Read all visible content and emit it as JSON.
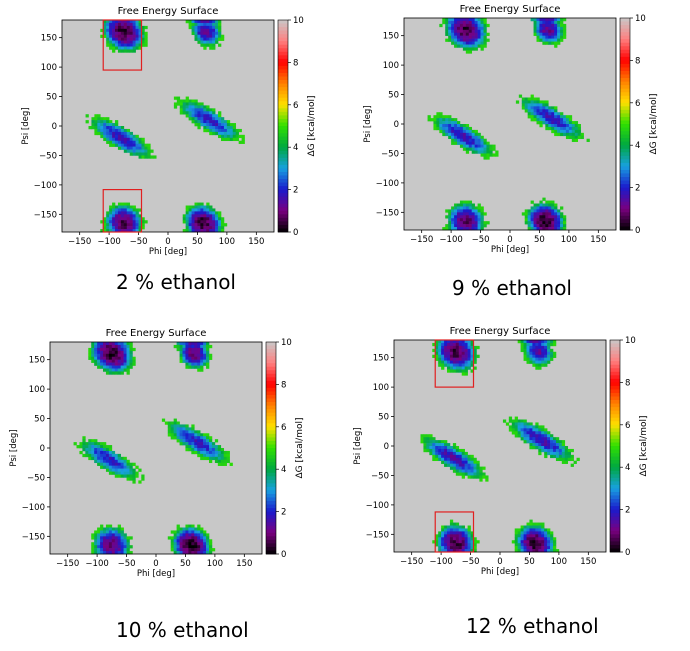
{
  "chart_data": [
    {
      "type": "heatmap",
      "title": "Free Energy Surface",
      "xlabel": "Phi [deg]",
      "ylabel": "Psi [deg]",
      "xlim": [
        -180,
        180
      ],
      "ylim": [
        -180,
        180
      ],
      "xticks": [
        "−150",
        "−100",
        "−50",
        "0",
        "50",
        "100",
        "150"
      ],
      "yticks": [
        "−150",
        "−100",
        "−50",
        "0",
        "50",
        "100",
        "150"
      ],
      "colorbar": {
        "label": "ΔG [kcal/mol]",
        "range": [
          0,
          10
        ],
        "ticks": [
          "0",
          "2",
          "4",
          "6",
          "8",
          "10"
        ]
      },
      "caption": "2 % ethanol",
      "basins": [
        {
          "phi": -75,
          "psi": 160,
          "min_dG": 0.4
        },
        {
          "phi": 65,
          "psi": 160,
          "min_dG": 1.2
        },
        {
          "phi": -80,
          "psi": -20,
          "min_dG": 1.6
        },
        {
          "phi": 70,
          "psi": 10,
          "min_dG": 1.8
        },
        {
          "phi": -75,
          "psi": -165,
          "min_dG": 0.6
        },
        {
          "phi": 60,
          "psi": -165,
          "min_dG": 0.3
        }
      ],
      "annotations": [
        {
          "label": "box-top",
          "phi_range": [
            -110,
            -45
          ],
          "psi_range": [
            95,
            180
          ]
        },
        {
          "label": "box-bottom",
          "phi_range": [
            -110,
            -45
          ],
          "psi_range": [
            -180,
            -108
          ]
        }
      ]
    },
    {
      "type": "heatmap",
      "title": "Free Energy Surface",
      "xlabel": "Phi [deg]",
      "ylabel": "Psi [deg]",
      "xlim": [
        -180,
        180
      ],
      "ylim": [
        -180,
        180
      ],
      "xticks": [
        "−150",
        "−100",
        "−50",
        "0",
        "50",
        "100",
        "150"
      ],
      "yticks": [
        "−150",
        "−100",
        "−50",
        "0",
        "50",
        "100",
        "150"
      ],
      "colorbar": {
        "label": "ΔG [kcal/mol]",
        "range": [
          0,
          10
        ],
        "ticks": [
          "0",
          "2",
          "4",
          "6",
          "8",
          "10"
        ]
      },
      "caption": "9 % ethanol",
      "basins": [
        {
          "phi": -75,
          "psi": 160,
          "min_dG": 0.4
        },
        {
          "phi": 65,
          "psi": 160,
          "min_dG": 1.1
        },
        {
          "phi": -80,
          "psi": -20,
          "min_dG": 1.6
        },
        {
          "phi": 70,
          "psi": 10,
          "min_dG": 1.7
        },
        {
          "phi": -75,
          "psi": -165,
          "min_dG": 0.7
        },
        {
          "phi": 60,
          "psi": -165,
          "min_dG": 0.2
        }
      ],
      "annotations": []
    },
    {
      "type": "heatmap",
      "title": "Free Energy Surface",
      "xlabel": "Phi [deg]",
      "ylabel": "Psi [deg]",
      "xlim": [
        -180,
        180
      ],
      "ylim": [
        -180,
        180
      ],
      "xticks": [
        "−150",
        "−100",
        "−50",
        "0",
        "50",
        "100",
        "150"
      ],
      "yticks": [
        "−150",
        "−100",
        "−50",
        "0",
        "50",
        "100",
        "150"
      ],
      "colorbar": {
        "label": "ΔG [kcal/mol]",
        "range": [
          0,
          10
        ],
        "ticks": [
          "0",
          "2",
          "4",
          "6",
          "8",
          "10"
        ]
      },
      "caption": "10 % ethanol",
      "basins": [
        {
          "phi": -75,
          "psi": 160,
          "min_dG": 0.3
        },
        {
          "phi": 65,
          "psi": 160,
          "min_dG": 0.8
        },
        {
          "phi": -80,
          "psi": -20,
          "min_dG": 1.8
        },
        {
          "phi": 70,
          "psi": 10,
          "min_dG": 1.8
        },
        {
          "phi": -75,
          "psi": -165,
          "min_dG": 0.8
        },
        {
          "phi": 60,
          "psi": -165,
          "min_dG": 0.1
        }
      ],
      "annotations": []
    },
    {
      "type": "heatmap",
      "title": "Free Energy Surface",
      "xlabel": "Phi [deg]",
      "ylabel": "Psi [deg]",
      "xlim": [
        -180,
        180
      ],
      "ylim": [
        -180,
        180
      ],
      "xticks": [
        "−150",
        "−100",
        "−50",
        "0",
        "50",
        "100",
        "150"
      ],
      "yticks": [
        "−150",
        "−100",
        "−50",
        "0",
        "50",
        "100",
        "150"
      ],
      "colorbar": {
        "label": "ΔG [kcal/mol]",
        "range": [
          0,
          10
        ],
        "ticks": [
          "0",
          "2",
          "4",
          "6",
          "8",
          "10"
        ]
      },
      "caption": "12 % ethanol",
      "basins": [
        {
          "phi": -75,
          "psi": 160,
          "min_dG": 0.5
        },
        {
          "phi": 65,
          "psi": 160,
          "min_dG": 1.3
        },
        {
          "phi": -80,
          "psi": -20,
          "min_dG": 1.5
        },
        {
          "phi": 70,
          "psi": 10,
          "min_dG": 1.6
        },
        {
          "phi": -75,
          "psi": -165,
          "min_dG": 0.4
        },
        {
          "phi": 60,
          "psi": -165,
          "min_dG": 0.2
        }
      ],
      "annotations": [
        {
          "label": "box-top",
          "phi_range": [
            -110,
            -45
          ],
          "psi_range": [
            100,
            180
          ]
        },
        {
          "label": "box-bottom",
          "phi_range": [
            -110,
            -45
          ],
          "psi_range": [
            -180,
            -112
          ]
        }
      ]
    }
  ],
  "colors": {
    "background_gray": "#c8c8c8",
    "annotation_box": "#e02020",
    "colormap": [
      "#000000",
      "#7a0080",
      "#1a1acc",
      "#18a0e0",
      "#00a840",
      "#30e000",
      "#ffe000",
      "#ff8000",
      "#ff0000",
      "#ff8080",
      "#c8c8c8"
    ]
  }
}
